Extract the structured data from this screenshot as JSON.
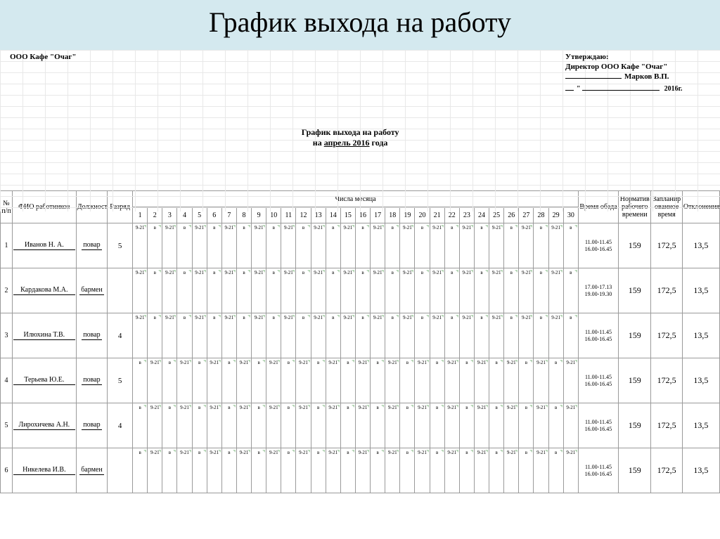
{
  "banner_title": "График выхода на работу",
  "org_name": "ООО Кафе \"Очаг\"",
  "approve": {
    "line1": "Утверждаю:",
    "line2": "Директор ООО Кафе \"Очаг\"",
    "signer": "Марков В.П.",
    "year_suffix": "2016г."
  },
  "doc_title_line1": "График выхода на работу",
  "doc_title_prefix": "на ",
  "doc_title_month": "апрель 2016",
  "doc_title_suffix": " года",
  "columns": {
    "num": "№ п/п",
    "fio": "ФИО  работников",
    "position": "Должность",
    "grade": "Разряд",
    "days_header": "Числа месяца",
    "lunch": "Время обеда",
    "norm": "Норматив рабочего времени",
    "planned": "Запланир ованное время",
    "deviation": "Отклонения"
  },
  "days_count": 30,
  "shift_pattern_labels": {
    "work": "9-21",
    "rest": "в"
  },
  "colors": {
    "banner_bg": "#d4e9ef",
    "grid_line": "#e8e8e8",
    "table_border": "#9a9a9a",
    "cell_corner": "#6fae6f"
  },
  "employees": [
    {
      "num": "1",
      "name": "Иванов Н. А.",
      "position": "повар",
      "grade": "5",
      "pattern_start": "work",
      "lunch": "11.00-11.45 16.00-16.45",
      "norm": "159",
      "planned": "172,5",
      "deviation": "13,5"
    },
    {
      "num": "2",
      "name": "Кардакова  М.А.",
      "position": "бармен",
      "grade": "",
      "pattern_start": "work",
      "lunch": "17.00-17.13 19.00-19.30",
      "norm": "159",
      "planned": "172,5",
      "deviation": "13,5"
    },
    {
      "num": "3",
      "name": "Илюхина Т.В.",
      "position": "повар",
      "grade": "4",
      "pattern_start": "work",
      "lunch": "11.00-11.45 16.00-16.45",
      "norm": "159",
      "planned": "172,5",
      "deviation": "13,5"
    },
    {
      "num": "4",
      "name": "Терьева Ю.Е.",
      "position": "повар",
      "grade": "5",
      "pattern_start": "rest",
      "lunch": "11.00-11.45 16.00-16.45",
      "norm": "159",
      "planned": "172,5",
      "deviation": "13,5"
    },
    {
      "num": "5",
      "name": "Лирохичева А.Н.",
      "position": "повар",
      "grade": "4",
      "pattern_start": "rest",
      "lunch": "11.00-11.45 16.00-16.45",
      "norm": "159",
      "planned": "172,5",
      "deviation": "13,5"
    },
    {
      "num": "6",
      "name": "Никелева И.В.",
      "position": "бармен",
      "grade": "",
      "pattern_start": "rest",
      "lunch": "11.00-11.45 16.00-16.45",
      "norm": "159",
      "planned": "172,5",
      "deviation": "13,5"
    }
  ]
}
